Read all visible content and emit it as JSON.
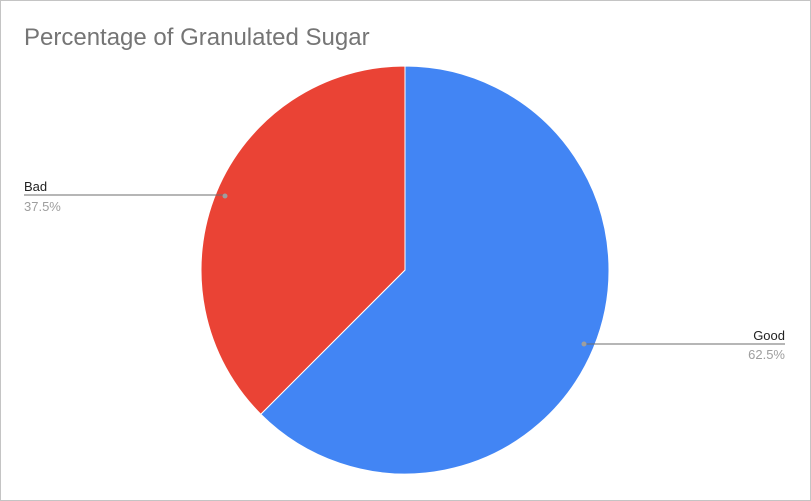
{
  "chart_data": {
    "type": "pie",
    "title": "Percentage of Granulated Sugar",
    "slices": [
      {
        "label": "Good",
        "value": 62.5,
        "value_label": "62.5%",
        "color": "#4285f4"
      },
      {
        "label": "Bad",
        "value": 37.5,
        "value_label": "37.5%",
        "color": "#ea4335"
      }
    ],
    "legend": "none",
    "label_style": "leader-lines"
  }
}
